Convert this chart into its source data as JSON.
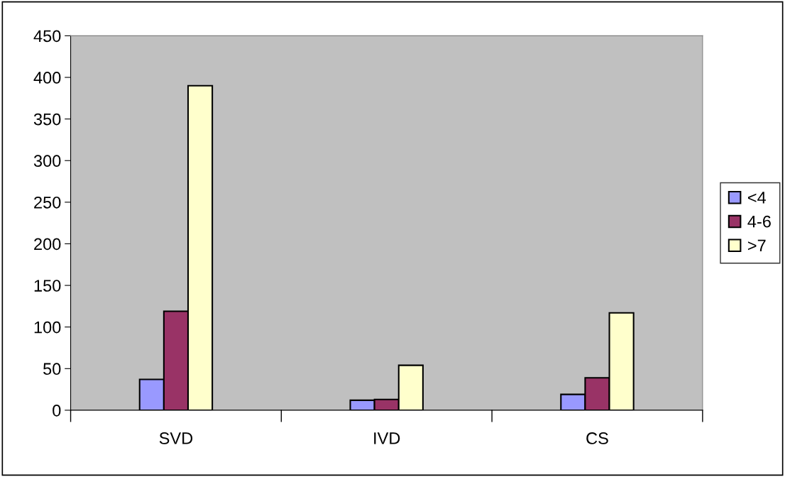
{
  "chart_data": {
    "type": "bar",
    "categories": [
      "SVD",
      "IVD",
      "CS"
    ],
    "series": [
      {
        "name": "<4",
        "color": "#9999ff",
        "values": [
          37,
          12,
          19
        ]
      },
      {
        "name": "4-6",
        "color": "#993366",
        "values": [
          119,
          13,
          39
        ]
      },
      {
        "name": ">7",
        "color": "#ffffcc",
        "values": [
          390,
          54,
          117
        ]
      }
    ],
    "ylim": [
      0,
      450
    ],
    "yticks": [
      0,
      50,
      100,
      150,
      200,
      250,
      300,
      350,
      400,
      450
    ],
    "grid": false,
    "legend": "right"
  }
}
